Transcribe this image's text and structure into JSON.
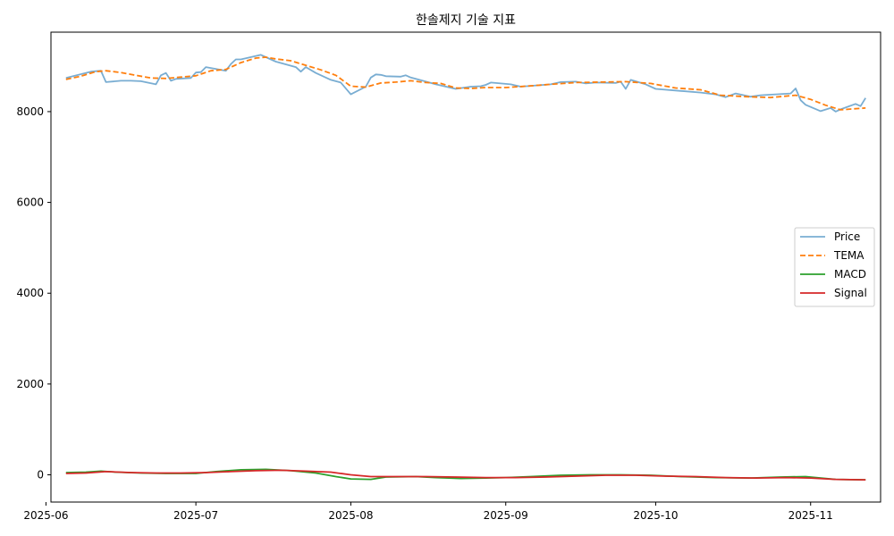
{
  "chart_data": {
    "type": "line",
    "title": "한솔제지 기술 지표",
    "xlabel": "",
    "ylabel": "",
    "xlim": [
      "2025-06-02",
      "2025-11-15"
    ],
    "ylim": [
      -600,
      9750
    ],
    "x_ticks": [
      "2025-06-01",
      "2025-07-01",
      "2025-08-01",
      "2025-09-01",
      "2025-10-01",
      "2025-11-01"
    ],
    "x_tick_labels": [
      "2025-06",
      "2025-07",
      "2025-08",
      "2025-09",
      "2025-10",
      "2025-11"
    ],
    "y_ticks": [
      0,
      2000,
      4000,
      6000,
      8000
    ],
    "y_tick_labels": [
      "0",
      "2000",
      "4000",
      "6000",
      "8000"
    ],
    "grid": false,
    "legend_position": "right",
    "series": [
      {
        "name": "Price",
        "color": "#1f77b4",
        "style": "solid",
        "x": [
          "2025-06-05",
          "2025-06-10",
          "2025-06-12",
          "2025-06-13",
          "2025-06-16",
          "2025-06-18",
          "2025-06-20",
          "2025-06-23",
          "2025-06-24",
          "2025-06-25",
          "2025-06-26",
          "2025-06-27",
          "2025-06-30",
          "2025-07-01",
          "2025-07-02",
          "2025-07-03",
          "2025-07-07",
          "2025-07-08",
          "2025-07-09",
          "2025-07-10",
          "2025-07-14",
          "2025-07-16",
          "2025-07-17",
          "2025-07-21",
          "2025-07-22",
          "2025-07-23",
          "2025-07-25",
          "2025-07-28",
          "2025-07-30",
          "2025-08-01",
          "2025-08-04",
          "2025-08-05",
          "2025-08-06",
          "2025-08-07",
          "2025-08-08",
          "2025-08-11",
          "2025-08-12",
          "2025-08-13",
          "2025-08-14",
          "2025-08-18",
          "2025-08-22",
          "2025-08-25",
          "2025-08-27",
          "2025-08-28",
          "2025-08-29",
          "2025-09-02",
          "2025-09-04",
          "2025-09-10",
          "2025-09-12",
          "2025-09-15",
          "2025-09-17",
          "2025-09-19",
          "2025-09-23",
          "2025-09-24",
          "2025-09-25",
          "2025-09-26",
          "2025-09-29",
          "2025-10-01",
          "2025-10-10",
          "2025-10-13",
          "2025-10-15",
          "2025-10-17",
          "2025-10-20",
          "2025-10-22",
          "2025-10-28",
          "2025-10-29",
          "2025-10-30",
          "2025-10-31",
          "2025-11-03",
          "2025-11-05",
          "2025-11-06",
          "2025-11-07",
          "2025-11-10",
          "2025-11-11",
          "2025-11-12"
        ],
        "values": [
          8740,
          8880,
          8900,
          8650,
          8680,
          8680,
          8670,
          8600,
          8800,
          8850,
          8680,
          8720,
          8740,
          8860,
          8870,
          8980,
          8900,
          9050,
          9150,
          9150,
          9250,
          9150,
          9100,
          8980,
          8880,
          8980,
          8850,
          8700,
          8640,
          8380,
          8550,
          8750,
          8820,
          8810,
          8780,
          8770,
          8800,
          8750,
          8720,
          8600,
          8500,
          8550,
          8560,
          8590,
          8640,
          8600,
          8550,
          8600,
          8650,
          8660,
          8620,
          8640,
          8630,
          8660,
          8500,
          8700,
          8600,
          8500,
          8420,
          8380,
          8320,
          8400,
          8330,
          8360,
          8400,
          8510,
          8250,
          8150,
          8010,
          8080,
          8000,
          8050,
          8170,
          8120,
          8300
        ]
      },
      {
        "name": "TEMA",
        "color": "#ff7f0e",
        "style": "dashed",
        "x": [
          "2025-06-05",
          "2025-06-08",
          "2025-06-11",
          "2025-06-13",
          "2025-06-16",
          "2025-06-19",
          "2025-06-22",
          "2025-06-25",
          "2025-06-28",
          "2025-07-01",
          "2025-07-04",
          "2025-07-07",
          "2025-07-10",
          "2025-07-13",
          "2025-07-15",
          "2025-07-17",
          "2025-07-20",
          "2025-07-23",
          "2025-07-26",
          "2025-07-29",
          "2025-08-01",
          "2025-08-04",
          "2025-08-07",
          "2025-08-10",
          "2025-08-13",
          "2025-08-16",
          "2025-08-19",
          "2025-08-22",
          "2025-08-25",
          "2025-08-28",
          "2025-09-01",
          "2025-09-05",
          "2025-09-10",
          "2025-09-15",
          "2025-09-20",
          "2025-09-25",
          "2025-09-30",
          "2025-10-05",
          "2025-10-10",
          "2025-10-14",
          "2025-10-19",
          "2025-10-24",
          "2025-10-29",
          "2025-11-01",
          "2025-11-04",
          "2025-11-07",
          "2025-11-12"
        ],
        "values": [
          8710,
          8780,
          8880,
          8900,
          8860,
          8800,
          8740,
          8730,
          8760,
          8790,
          8900,
          8930,
          9080,
          9180,
          9200,
          9160,
          9120,
          9020,
          8920,
          8800,
          8560,
          8540,
          8630,
          8650,
          8680,
          8640,
          8620,
          8520,
          8510,
          8530,
          8530,
          8560,
          8600,
          8640,
          8650,
          8660,
          8620,
          8520,
          8480,
          8360,
          8330,
          8310,
          8360,
          8270,
          8140,
          8040,
          8080
        ]
      },
      {
        "name": "MACD",
        "color": "#2ca02c",
        "style": "solid",
        "x": [
          "2025-06-05",
          "2025-06-09",
          "2025-06-12",
          "2025-06-15",
          "2025-06-20",
          "2025-06-25",
          "2025-07-01",
          "2025-07-05",
          "2025-07-10",
          "2025-07-15",
          "2025-07-20",
          "2025-07-25",
          "2025-07-29",
          "2025-08-01",
          "2025-08-05",
          "2025-08-08",
          "2025-08-14",
          "2025-08-18",
          "2025-08-23",
          "2025-08-28",
          "2025-09-01",
          "2025-09-06",
          "2025-09-12",
          "2025-09-18",
          "2025-09-24",
          "2025-09-30",
          "2025-10-06",
          "2025-10-13",
          "2025-10-20",
          "2025-10-26",
          "2025-10-31",
          "2025-11-06",
          "2025-11-12"
        ],
        "values": [
          50,
          60,
          80,
          60,
          40,
          30,
          30,
          70,
          110,
          120,
          90,
          40,
          -40,
          -90,
          -100,
          -50,
          -40,
          -60,
          -80,
          -70,
          -60,
          -40,
          -10,
          0,
          0,
          -10,
          -40,
          -60,
          -70,
          -50,
          -40,
          -100,
          -110
        ]
      },
      {
        "name": "Signal",
        "color": "#d62728",
        "style": "solid",
        "x": [
          "2025-06-05",
          "2025-06-09",
          "2025-06-13",
          "2025-06-18",
          "2025-06-23",
          "2025-06-28",
          "2025-07-03",
          "2025-07-08",
          "2025-07-13",
          "2025-07-18",
          "2025-07-23",
          "2025-07-28",
          "2025-08-01",
          "2025-08-05",
          "2025-08-10",
          "2025-08-16",
          "2025-08-22",
          "2025-08-28",
          "2025-09-03",
          "2025-09-09",
          "2025-09-15",
          "2025-09-21",
          "2025-09-27",
          "2025-10-03",
          "2025-10-09",
          "2025-10-15",
          "2025-10-21",
          "2025-10-27",
          "2025-11-01",
          "2025-11-06",
          "2025-11-12"
        ],
        "values": [
          30,
          40,
          70,
          50,
          40,
          40,
          50,
          70,
          90,
          100,
          80,
          60,
          0,
          -40,
          -40,
          -40,
          -50,
          -60,
          -60,
          -50,
          -30,
          -10,
          -10,
          -30,
          -40,
          -60,
          -70,
          -60,
          -70,
          -100,
          -110
        ]
      }
    ]
  }
}
